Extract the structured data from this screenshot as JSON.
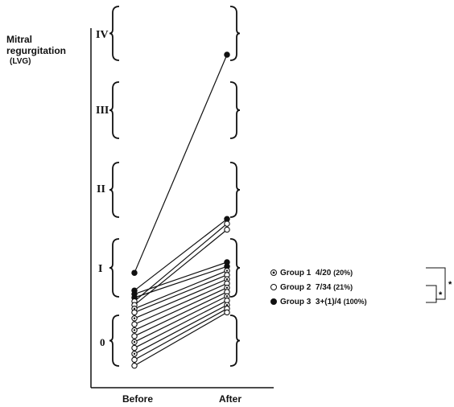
{
  "chart_data": {
    "type": "line",
    "ylabel_line1": "Mitral",
    "ylabel_line2": "regurgitation",
    "ylabel_unit": "(LVG)",
    "categories": [
      "Before",
      "After"
    ],
    "grade_labels": [
      "0",
      "I",
      "II",
      "III",
      "IV"
    ],
    "series": [
      {
        "style": "filled",
        "values": [
          1.35,
          4.0
        ]
      },
      {
        "style": "filled",
        "values": [
          1.1,
          2.1
        ]
      },
      {
        "style": "filled",
        "values": [
          1.05,
          1.5
        ]
      },
      {
        "style": "filled",
        "values": [
          1.0,
          1.44
        ]
      },
      {
        "style": "open",
        "values": [
          0.95,
          2.04
        ]
      },
      {
        "style": "open",
        "values": [
          0.9,
          1.96
        ]
      },
      {
        "style": "dotted",
        "values": [
          0.85,
          1.38
        ]
      },
      {
        "style": "open",
        "values": [
          0.8,
          1.32
        ]
      },
      {
        "style": "dotted",
        "values": [
          0.72,
          1.26
        ]
      },
      {
        "style": "open",
        "values": [
          0.64,
          1.2
        ]
      },
      {
        "style": "dotted",
        "values": [
          0.56,
          1.14
        ]
      },
      {
        "style": "open",
        "values": [
          0.48,
          1.08
        ]
      },
      {
        "style": "dotted",
        "values": [
          0.4,
          1.02
        ]
      },
      {
        "style": "open",
        "values": [
          0.32,
          0.96
        ]
      },
      {
        "style": "dotted",
        "values": [
          0.24,
          0.9
        ]
      },
      {
        "style": "open",
        "values": [
          0.16,
          0.85
        ]
      },
      {
        "style": "open",
        "values": [
          0.08,
          0.8
        ]
      }
    ],
    "legend": [
      {
        "symbol": "dotted",
        "group": "Group 1",
        "stat": "4/20",
        "pct": "(20%)"
      },
      {
        "symbol": "open",
        "group": "Group 2",
        "stat": "7/34",
        "pct": "(21%)"
      },
      {
        "symbol": "filled",
        "group": "Group 3",
        "stat": "3+(1)/4",
        "pct": "(100%)"
      }
    ],
    "significance_marker": "*"
  }
}
